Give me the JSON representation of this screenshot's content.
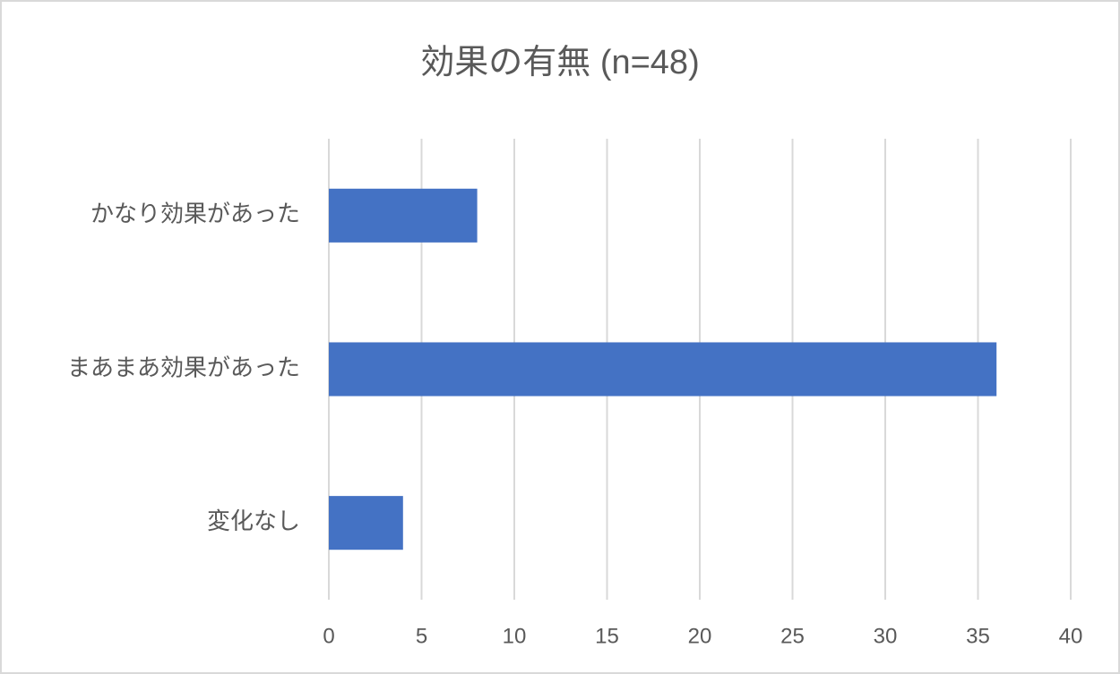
{
  "chart_data": {
    "type": "bar",
    "title": "効果の有無 (n=48)",
    "categories": [
      "かなり効果があった",
      "まあまあ効果があった",
      "変化なし"
    ],
    "values": [
      8,
      36,
      4
    ],
    "color": "#4472c4",
    "xlim": [
      0,
      40
    ],
    "xticks": [
      0,
      5,
      10,
      15,
      20,
      25,
      30,
      35,
      40
    ],
    "grid": true
  }
}
